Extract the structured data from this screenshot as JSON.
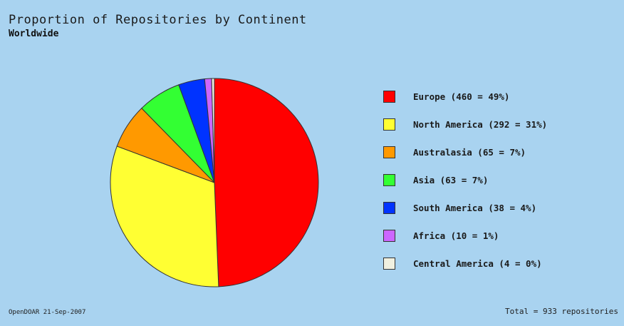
{
  "chart_data": {
    "type": "pie",
    "title": "Proportion of Repositories by Continent",
    "subtitle": "Worldwide",
    "slices": [
      {
        "label": "Europe (460 = 49%)",
        "value": 460,
        "color": "#ff0000"
      },
      {
        "label": "North America (292 = 31%)",
        "value": 292,
        "color": "#ffff33"
      },
      {
        "label": "Australasia (65 = 7%)",
        "value": 65,
        "color": "#ff9900"
      },
      {
        "label": "Asia (63 = 7%)",
        "value": 63,
        "color": "#33ff33"
      },
      {
        "label": "South America (38 = 4%)",
        "value": 38,
        "color": "#0033ff"
      },
      {
        "label": "Africa (10 = 1%)",
        "value": 10,
        "color": "#cc66ff"
      },
      {
        "label": "Central America (4 = 0%)",
        "value": 4,
        "color": "#f0f0e0"
      }
    ],
    "start": "12 o'clock",
    "direction": "clockwise",
    "legend": "right"
  },
  "footer": {
    "left": "OpenDOAR 21-Sep-2007",
    "right": "Total = 933 repositories"
  }
}
